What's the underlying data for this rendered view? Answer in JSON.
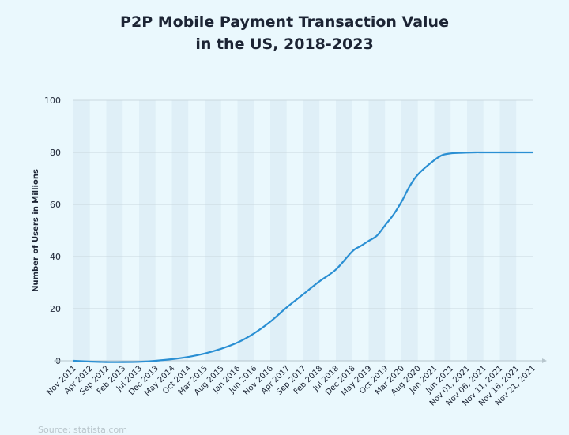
{
  "title": {
    "line1": "P2P Mobile Payment Transaction Value",
    "line2": "in the US, 2018-2023"
  },
  "source": "Source: statista.com",
  "colors": {
    "background": "#eaf8fd",
    "line": "#2a8fd3",
    "band": "#dfeff7",
    "grid": "#c9d7de",
    "text": "#1c2434"
  },
  "chart_data": {
    "type": "line",
    "title": "P2P Mobile Payment Transaction Value in the US, 2018-2023",
    "xlabel": "",
    "ylabel": "Number of Users in Millions",
    "ylim": [
      0,
      100
    ],
    "yticks": [
      0,
      20,
      40,
      60,
      80,
      100
    ],
    "grid": true,
    "categories": [
      "Nov 2011",
      "Apr 2012",
      "Sep 2012",
      "Feb 2013",
      "Jul 2013",
      "Dec 2013",
      "May 2014",
      "Oct 2014",
      "Mar 2015",
      "Aug 2015",
      "Jan 2016",
      "Jun 2016",
      "Nov 2016",
      "Apr 2017",
      "Sep 2017",
      "Feb 2018",
      "Jul 2018",
      "Dec 2018",
      "May 2019",
      "Oct 2019",
      "Mar 2020",
      "Aug 2020",
      "Jan 2021",
      "Jun 2021",
      "Nov 01, 2021",
      "Nov 06, 2021",
      "Nov 11, 2021",
      "Nov 16, 2021",
      "Nov 21, 2021"
    ],
    "series": [
      {
        "name": "Number of Users in Millions",
        "x": [
          0,
          1,
          2,
          3,
          4,
          5,
          6,
          7,
          8,
          9,
          10,
          11,
          12,
          13,
          14,
          15,
          16,
          17,
          17.5,
          18,
          18.5,
          19,
          19.5,
          20,
          20.5,
          21,
          22,
          22.5,
          23,
          23.5,
          24,
          24.5,
          25,
          26,
          27,
          28
        ],
        "values": [
          0,
          -0.3,
          -0.5,
          -0.5,
          -0.4,
          0,
          0.6,
          1.5,
          2.8,
          4.6,
          7,
          10.5,
          15,
          20.5,
          25.5,
          30.5,
          35,
          42,
          44,
          46,
          48,
          52,
          56,
          61,
          67,
          71.5,
          77,
          79,
          79.6,
          79.8,
          79.9,
          80,
          80,
          80,
          80,
          80
        ]
      }
    ]
  }
}
